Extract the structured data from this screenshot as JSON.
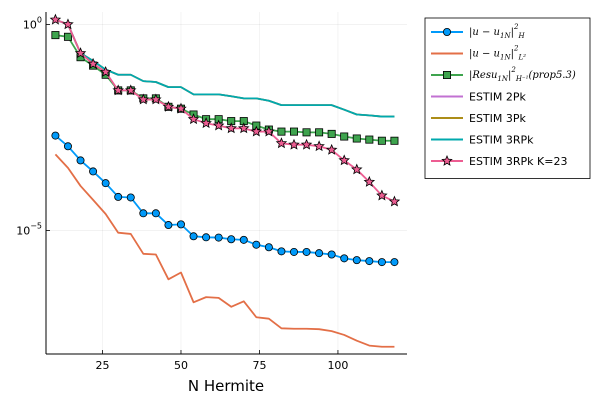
{
  "chart_data": {
    "type": "line",
    "xlabel": "N Hermite",
    "ylabel": "",
    "yscale": "log10",
    "xlim": [
      7,
      122
    ],
    "ylim": [
      1e-08,
      2
    ],
    "grid": true,
    "legend_position": "right",
    "x_ticks": [
      25,
      50,
      75,
      100
    ],
    "x_tick_labels": [
      "25",
      "50",
      "75",
      "100"
    ],
    "y_ticks": [
      1,
      1e-05
    ],
    "y_tick_labels": [
      {
        "base": "10",
        "exp": "0"
      },
      {
        "base": "10",
        "exp": "−5"
      }
    ],
    "x": [
      10,
      14,
      18,
      22,
      26,
      30,
      34,
      38,
      42,
      46,
      50,
      54,
      58,
      62,
      66,
      70,
      74,
      78,
      82,
      86,
      90,
      94,
      98,
      102,
      106,
      110,
      114,
      118
    ],
    "series": [
      {
        "name": "|u − u_{1N}|^2_{H^1}",
        "legend": {
          "main": "|u − u",
          "sub": "1N",
          "tail": "|",
          "sup": "2",
          "sub2": "H"
        },
        "color": "#009AFA",
        "marker": "circle",
        "values": [
          0.002,
          0.0011,
          0.0005,
          0.00027,
          0.00014,
          6.5e-05,
          6.3e-05,
          2.6e-05,
          2.6e-05,
          1.35e-05,
          1.4e-05,
          7.2e-06,
          6.8e-06,
          6.7e-06,
          6.1e-06,
          5.9e-06,
          4.5e-06,
          3.9e-06,
          3.1e-06,
          3e-06,
          3e-06,
          2.8e-06,
          2.6e-06,
          2.1e-06,
          1.9e-06,
          1.8e-06,
          1.7e-06,
          1.7e-06
        ]
      },
      {
        "name": "|u − u_{1N}|^2_{L^2}",
        "legend": {
          "main": "|u − u",
          "sub": "1N",
          "tail": "|",
          "sup": "2",
          "sub2": "L²"
        },
        "color": "#E36F47",
        "marker": "none",
        "values": [
          0.0007,
          0.00033,
          0.00012,
          5.5e-05,
          2.5e-05,
          8.8e-06,
          8.2e-06,
          2.7e-06,
          2.6e-06,
          6.5e-07,
          9.5e-07,
          1.8e-07,
          2.4e-07,
          2.3e-07,
          1.4e-07,
          1.9e-07,
          7.8e-08,
          7.2e-08,
          4.2e-08,
          4.1e-08,
          4.1e-08,
          4e-08,
          3.6e-08,
          2.9e-08,
          2.1e-08,
          1.6e-08,
          1.5e-08,
          1.5e-08
        ]
      },
      {
        "name": "|Resu_{1N}|^2_{H^-1}(prop5.3)",
        "legend": {
          "main": "|Resu",
          "sub": "1N",
          "tail": "|",
          "sup": "2",
          "sub2": "H⁻¹",
          "after": "(prop5.3)"
        },
        "color": "#3EA44E",
        "marker": "square",
        "values": [
          0.55,
          0.5,
          0.16,
          0.1,
          0.06,
          0.025,
          0.025,
          0.016,
          0.016,
          0.01,
          0.009,
          0.0065,
          0.005,
          0.005,
          0.0045,
          0.0045,
          0.0035,
          0.0028,
          0.0025,
          0.0025,
          0.0024,
          0.0024,
          0.0022,
          0.0019,
          0.0017,
          0.0016,
          0.0015,
          0.0015
        ]
      },
      {
        "name": "ESTIM 2Pk",
        "color": "#C271D2",
        "marker": "none",
        "values": [
          1.3,
          1.0,
          0.2,
          0.13,
          0.08,
          0.06,
          0.06,
          0.042,
          0.04,
          0.03,
          0.03,
          0.02,
          0.02,
          0.02,
          0.018,
          0.016,
          0.016,
          0.014,
          0.011,
          0.011,
          0.011,
          0.011,
          0.011,
          0.0085,
          0.0065,
          0.0062,
          0.0058,
          0.0058
        ]
      },
      {
        "name": "ESTIM 3Pk",
        "color": "#AC8D18",
        "marker": "none",
        "values": [
          1.3,
          1.0,
          0.2,
          0.13,
          0.08,
          0.06,
          0.06,
          0.042,
          0.04,
          0.03,
          0.03,
          0.02,
          0.02,
          0.02,
          0.018,
          0.016,
          0.016,
          0.014,
          0.011,
          0.011,
          0.011,
          0.011,
          0.011,
          0.0085,
          0.0065,
          0.0062,
          0.0058,
          0.0058
        ]
      },
      {
        "name": "ESTIM 3RPk",
        "color": "#00A9AD",
        "marker": "none",
        "values": [
          1.3,
          1.0,
          0.2,
          0.13,
          0.08,
          0.06,
          0.06,
          0.042,
          0.04,
          0.03,
          0.03,
          0.02,
          0.02,
          0.02,
          0.018,
          0.016,
          0.016,
          0.014,
          0.011,
          0.011,
          0.011,
          0.011,
          0.011,
          0.0085,
          0.0065,
          0.0062,
          0.0058,
          0.0058
        ]
      },
      {
        "name": "ESTIM 3RPk K=23",
        "color": "#ED5D92",
        "marker": "star",
        "values": [
          1.3,
          1.0,
          0.2,
          0.11,
          0.07,
          0.025,
          0.025,
          0.015,
          0.015,
          0.01,
          0.009,
          0.005,
          0.004,
          0.0035,
          0.003,
          0.003,
          0.0025,
          0.0025,
          0.0013,
          0.0012,
          0.0012,
          0.0011,
          0.0009,
          0.0005,
          0.0003,
          0.00015,
          7e-05,
          5e-05
        ]
      }
    ]
  }
}
